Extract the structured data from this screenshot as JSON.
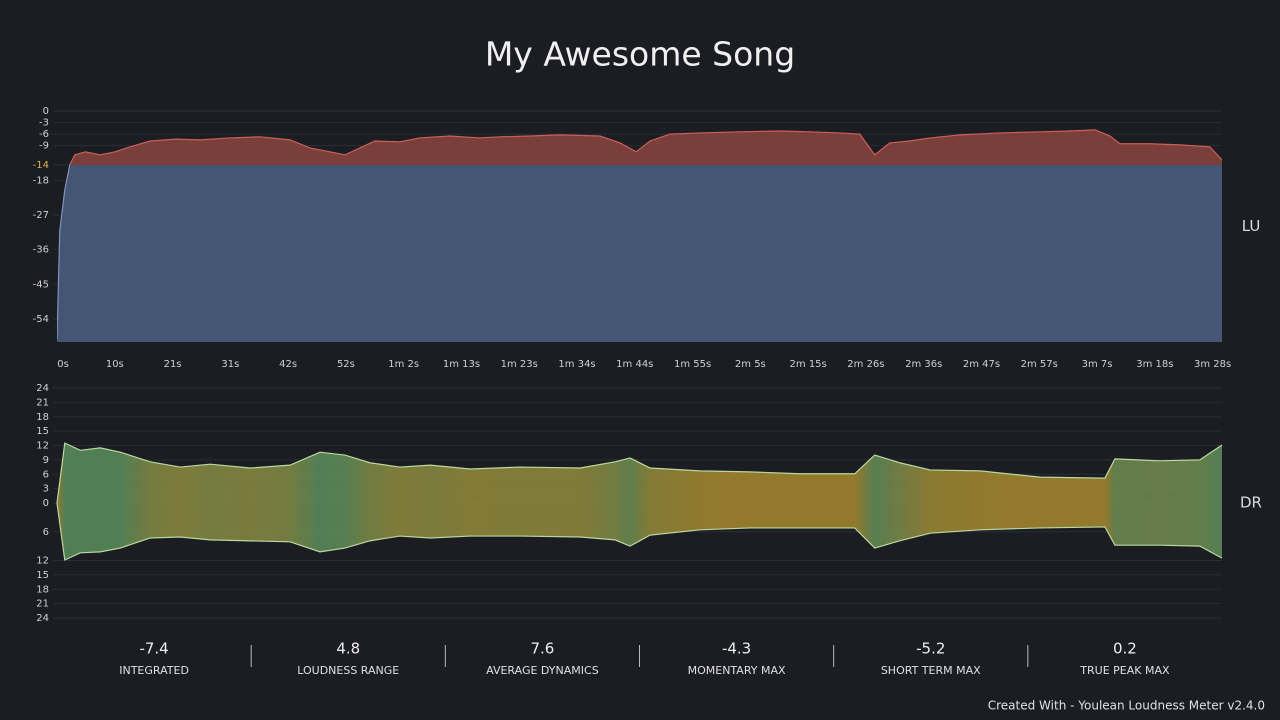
{
  "title": "My Awesome Song",
  "chart_data": [
    {
      "type": "loudness",
      "ylabel": "LU",
      "x": [
        0,
        0.5,
        1.4,
        2.3,
        3.2,
        5.1,
        7.8,
        10.5,
        13.2,
        16.8,
        21.3,
        25.8,
        31.2,
        36.6,
        42,
        45.6,
        49.2,
        51.9,
        54.6,
        57.3,
        61.8,
        65.4,
        70.8,
        76.2,
        79.8,
        85.3,
        90.7,
        97.9,
        101.5,
        104.4,
        106.9,
        110.5,
        115.9,
        123.1,
        130.3,
        135.7,
        141.1,
        144.7,
        147.4,
        150.1,
        153.7,
        157.4,
        162.8,
        170,
        177.2,
        182.6,
        187.1,
        189.8,
        191.6,
        197,
        202.4,
        207.8,
        210
      ],
      "values": [
        -59.3,
        -31.1,
        -20.5,
        -14,
        -11.4,
        -10.6,
        -11.4,
        -10.6,
        -9.3,
        -7.8,
        -7.3,
        -7.5,
        -7,
        -6.7,
        -7.5,
        -9.6,
        -10.6,
        -11.4,
        -9.6,
        -7.8,
        -8,
        -7,
        -6.5,
        -7,
        -6.7,
        -6.5,
        -6.2,
        -6.5,
        -8.3,
        -10.6,
        -7.8,
        -6,
        -5.7,
        -5.4,
        -5.2,
        -5.4,
        -5.7,
        -6,
        -11.4,
        -8.3,
        -7.8,
        -7,
        -6.2,
        -5.7,
        -5.4,
        -5.2,
        -4.9,
        -6.5,
        -8.5,
        -8.5,
        -8.8,
        -9.3,
        -12.7
      ],
      "target": -14,
      "target_color": "#d9b54a",
      "color_above": "#7a3f3b",
      "color_below": "#455675",
      "line_above": "#c9605a",
      "line_below": "#7f93bd",
      "xlim": [
        0,
        210
      ],
      "ylim": [
        -60,
        0
      ],
      "yticks": [
        0,
        -3,
        -6,
        -9,
        -14,
        -18,
        -27,
        -36,
        -45,
        -54
      ],
      "xticks": [
        {
          "value": 0,
          "label": "0s"
        },
        {
          "value": 10.42,
          "label": "10s"
        },
        {
          "value": 20.83,
          "label": "21s"
        },
        {
          "value": 31.25,
          "label": "31s"
        },
        {
          "value": 41.66,
          "label": "42s"
        },
        {
          "value": 52.08,
          "label": "52s"
        },
        {
          "value": 62.49,
          "label": "1m 2s"
        },
        {
          "value": 72.91,
          "label": "1m 13s"
        },
        {
          "value": 83.32,
          "label": "1m 23s"
        },
        {
          "value": 93.74,
          "label": "1m 34s"
        },
        {
          "value": 104.15,
          "label": "1m 44s"
        },
        {
          "value": 114.57,
          "label": "1m 55s"
        },
        {
          "value": 124.98,
          "label": "2m 5s"
        },
        {
          "value": 135.4,
          "label": "2m 15s"
        },
        {
          "value": 145.81,
          "label": "2m 26s"
        },
        {
          "value": 156.23,
          "label": "2m 36s"
        },
        {
          "value": 166.64,
          "label": "2m 47s"
        },
        {
          "value": 177.06,
          "label": "2m 57s"
        },
        {
          "value": 187.47,
          "label": "3m 7s"
        },
        {
          "value": 197.89,
          "label": "3m 18s"
        },
        {
          "value": 208.3,
          "label": "3m 28s"
        }
      ],
      "grid": true
    },
    {
      "type": "dynamics",
      "ylabel": "DR",
      "x": [
        0,
        1.4,
        4.2,
        7.8,
        11.4,
        16.8,
        22.2,
        27.6,
        34.8,
        42,
        47.4,
        51.9,
        56.4,
        61.8,
        67.3,
        74.5,
        83.5,
        94.3,
        100.6,
        103.3,
        106.9,
        115.9,
        124.9,
        133.9,
        143.8,
        147.4,
        151.9,
        157.4,
        166.4,
        177.2,
        188.9,
        190.7,
        198.8,
        206,
        210
      ],
      "upper": [
        0,
        12.5,
        11,
        11.5,
        10.6,
        8.6,
        7.5,
        8.1,
        7.3,
        7.9,
        10.6,
        10,
        8.4,
        7.5,
        7.9,
        7.1,
        7.5,
        7.3,
        8.6,
        9.4,
        7.3,
        6.7,
        6.5,
        6.1,
        6.1,
        10,
        8.4,
        6.9,
        6.7,
        5.4,
        5.2,
        9.2,
        8.8,
        9,
        12.1
      ],
      "lower": [
        0,
        -11.9,
        -10.4,
        -10.2,
        -9.4,
        -7.3,
        -7.1,
        -7.7,
        -7.9,
        -8.1,
        -10.2,
        -9.4,
        -7.9,
        -6.9,
        -7.3,
        -6.9,
        -6.9,
        -7.1,
        -7.7,
        -9,
        -6.7,
        -5.6,
        -5.2,
        -5.2,
        -5.2,
        -9.4,
        -7.9,
        -6.3,
        -5.6,
        -5.2,
        -5,
        -8.8,
        -8.8,
        -9,
        -11.5
      ],
      "color_high": "#5c8f5e",
      "color_low": "#a8892e",
      "line_color": "#b9d9a0",
      "xlim": [
        0,
        210
      ],
      "ylim": [
        -24,
        24
      ],
      "yticks": [
        24,
        21,
        18,
        15,
        12,
        9,
        6,
        3,
        0,
        {
          "value": -6,
          "label": "6"
        },
        {
          "value": -12,
          "label": "12"
        },
        {
          "value": -15,
          "label": "15"
        },
        {
          "value": -18,
          "label": "18"
        },
        {
          "value": -21,
          "label": "21"
        },
        {
          "value": -24,
          "label": "24"
        }
      ],
      "grid": true
    }
  ],
  "stats": [
    {
      "value": -7.4,
      "label": "INTEGRATED"
    },
    {
      "value": 4.8,
      "label": "LOUDNESS RANGE"
    },
    {
      "value": 7.6,
      "label": "AVERAGE DYNAMICS"
    },
    {
      "value": -4.3,
      "label": "MOMENTARY MAX"
    },
    {
      "value": -5.2,
      "label": "SHORT TERM MAX"
    },
    {
      "value": 0.2,
      "label": "TRUE PEAK MAX"
    }
  ],
  "footer": "Created With - Youlean Loudness Meter v2.4.0"
}
